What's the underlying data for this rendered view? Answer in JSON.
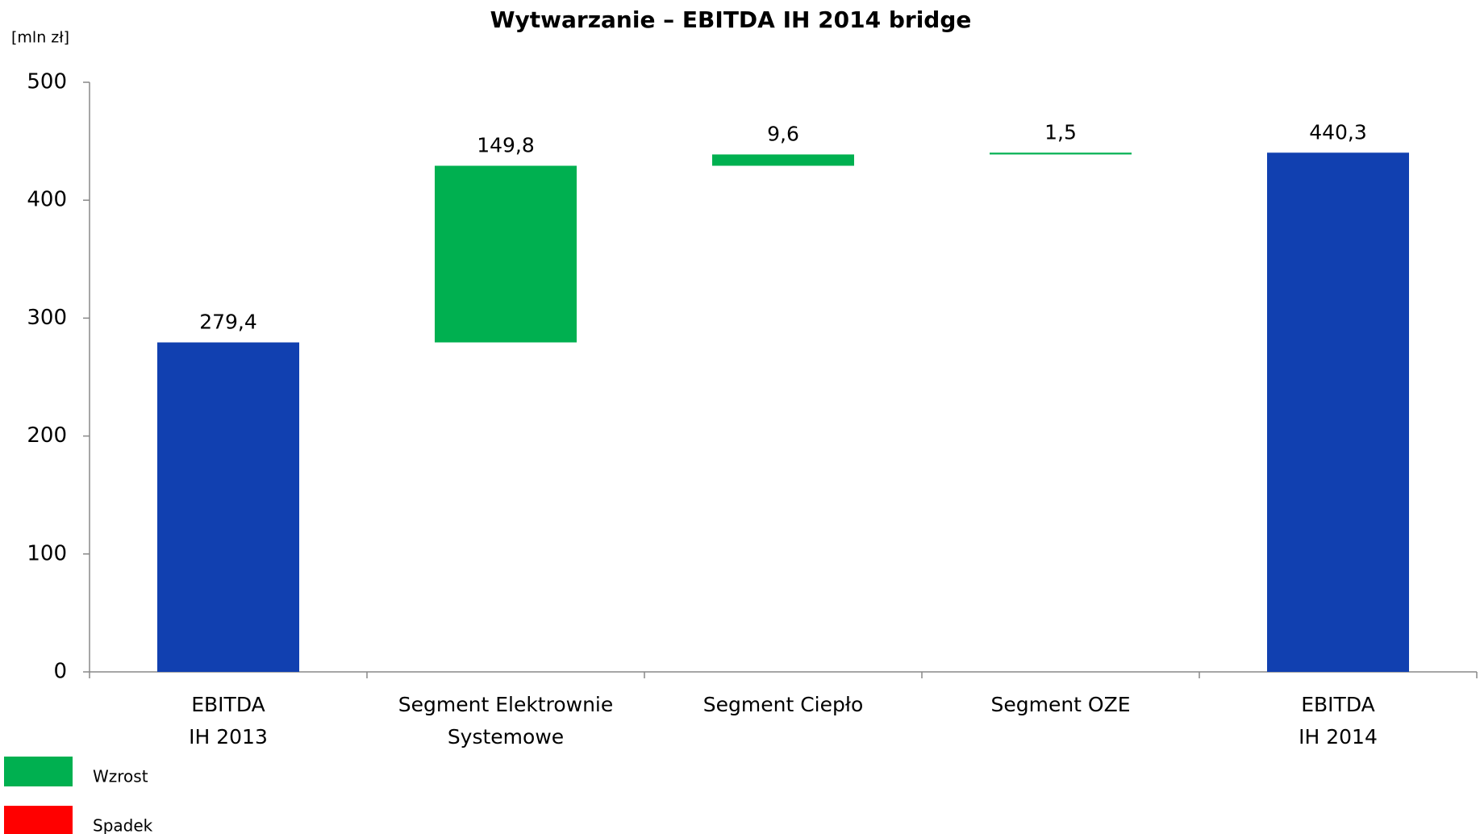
{
  "chart_data": {
    "type": "waterfall",
    "title": "Wytwarzanie – EBITDA IH 2014 bridge",
    "unit_label": "[mln zł]",
    "categories": [
      "EBITDA\nIH 2013",
      "Segment Elektrownie\nSystemowe",
      "Segment Ciepło",
      "Segment OZE",
      "EBITDA\nIH 2014"
    ],
    "values": [
      279.4,
      149.8,
      9.6,
      1.5,
      440.3
    ],
    "value_labels": [
      "279,4",
      "149,8",
      "9,6",
      "1,5",
      "440,3"
    ],
    "measure": [
      "total",
      "relative",
      "relative",
      "relative",
      "total"
    ],
    "colors": {
      "total": "#1140b0",
      "increase": "#00b050",
      "decrease": "#ff0000"
    },
    "legend": [
      {
        "name": "Wzrost",
        "color": "#00b050"
      },
      {
        "name": "Spadek",
        "color": "#ff0000"
      }
    ],
    "ylim": [
      0,
      500
    ],
    "yticks": [
      0,
      100,
      200,
      300,
      400,
      500
    ],
    "grid": false
  }
}
